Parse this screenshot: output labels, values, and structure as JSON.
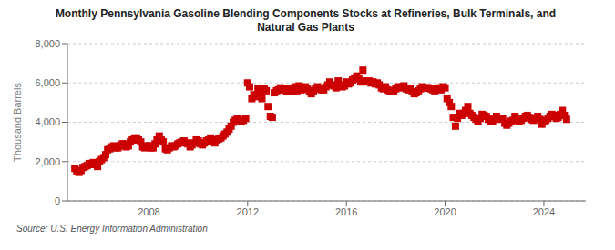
{
  "chart_data": {
    "type": "scatter",
    "title": "Monthly Pennsylvania Gasoline Blending Components Stocks at Refineries, Bulk Terminals, and\nNatural Gas Plants",
    "ylabel": "Thousand Barrels",
    "source": "Source: U.S. Energy Information Administration",
    "color": "#cc0000",
    "marker": "square",
    "grid": true,
    "xlim": [
      2004.7,
      2025.7
    ],
    "xticks": [
      2008,
      2012,
      2016,
      2020,
      2024
    ],
    "ylim": [
      0,
      8000
    ],
    "yticks": [
      0,
      {
        "value": 2000,
        "label": "2,000"
      },
      {
        "value": 4000,
        "label": "4,000"
      },
      {
        "value": 6000,
        "label": "6,000"
      },
      {
        "value": 8000,
        "label": "8,000"
      }
    ],
    "x": [
      2005.0,
      2005.08,
      2005.17,
      2005.25,
      2005.33,
      2005.42,
      2005.5,
      2005.58,
      2005.67,
      2005.75,
      2005.83,
      2005.92,
      2006.0,
      2006.08,
      2006.17,
      2006.25,
      2006.33,
      2006.42,
      2006.5,
      2006.58,
      2006.67,
      2006.75,
      2006.83,
      2006.92,
      2007.0,
      2007.08,
      2007.17,
      2007.25,
      2007.33,
      2007.42,
      2007.5,
      2007.58,
      2007.67,
      2007.75,
      2007.83,
      2007.92,
      2008.0,
      2008.08,
      2008.17,
      2008.25,
      2008.33,
      2008.42,
      2008.5,
      2008.58,
      2008.67,
      2008.75,
      2008.83,
      2008.92,
      2009.0,
      2009.08,
      2009.17,
      2009.25,
      2009.33,
      2009.42,
      2009.5,
      2009.58,
      2009.67,
      2009.75,
      2009.83,
      2009.92,
      2010.0,
      2010.08,
      2010.17,
      2010.25,
      2010.33,
      2010.42,
      2010.5,
      2010.58,
      2010.67,
      2010.75,
      2010.83,
      2010.92,
      2011.0,
      2011.08,
      2011.17,
      2011.25,
      2011.33,
      2011.42,
      2011.5,
      2011.58,
      2011.67,
      2011.75,
      2011.83,
      2011.92,
      2012.0,
      2012.08,
      2012.17,
      2012.25,
      2012.33,
      2012.42,
      2012.5,
      2012.58,
      2012.67,
      2012.75,
      2012.83,
      2012.92,
      2013.0,
      2013.08,
      2013.17,
      2013.25,
      2013.33,
      2013.42,
      2013.5,
      2013.58,
      2013.67,
      2013.75,
      2013.83,
      2013.92,
      2014.0,
      2014.08,
      2014.17,
      2014.25,
      2014.33,
      2014.42,
      2014.5,
      2014.58,
      2014.67,
      2014.75,
      2014.83,
      2014.92,
      2015.0,
      2015.08,
      2015.17,
      2015.25,
      2015.33,
      2015.42,
      2015.5,
      2015.58,
      2015.67,
      2015.75,
      2015.83,
      2015.92,
      2016.0,
      2016.08,
      2016.17,
      2016.25,
      2016.33,
      2016.42,
      2016.5,
      2016.58,
      2016.67,
      2016.75,
      2016.83,
      2016.92,
      2017.0,
      2017.08,
      2017.17,
      2017.25,
      2017.33,
      2017.42,
      2017.5,
      2017.58,
      2017.67,
      2017.75,
      2017.83,
      2017.92,
      2018.0,
      2018.08,
      2018.17,
      2018.25,
      2018.33,
      2018.42,
      2018.5,
      2018.58,
      2018.67,
      2018.75,
      2018.83,
      2018.92,
      2019.0,
      2019.08,
      2019.17,
      2019.25,
      2019.33,
      2019.42,
      2019.5,
      2019.58,
      2019.67,
      2019.75,
      2019.83,
      2019.92,
      2020.0,
      2020.08,
      2020.17,
      2020.25,
      2020.33,
      2020.42,
      2020.5,
      2020.58,
      2020.67,
      2020.75,
      2020.83,
      2020.92,
      2021.0,
      2021.08,
      2021.17,
      2021.25,
      2021.33,
      2021.42,
      2021.5,
      2021.58,
      2021.67,
      2021.75,
      2021.83,
      2021.92,
      2022.0,
      2022.08,
      2022.17,
      2022.25,
      2022.33,
      2022.42,
      2022.5,
      2022.58,
      2022.67,
      2022.75,
      2022.83,
      2022.92,
      2023.0,
      2023.08,
      2023.17,
      2023.25,
      2023.33,
      2023.42,
      2023.5,
      2023.58,
      2023.67,
      2023.75,
      2023.83,
      2023.92,
      2024.0,
      2024.08,
      2024.17,
      2024.25,
      2024.33,
      2024.42,
      2024.5,
      2024.58,
      2024.67,
      2024.75,
      2024.83,
      2024.92
    ],
    "values": [
      1650,
      1500,
      1450,
      1550,
      1700,
      1750,
      1800,
      1900,
      1850,
      1950,
      1850,
      1750,
      2000,
      2100,
      2200,
      2350,
      2600,
      2650,
      2750,
      2800,
      2700,
      2700,
      2800,
      2900,
      2900,
      2750,
      2800,
      3000,
      3100,
      3200,
      3200,
      3100,
      3000,
      2750,
      2700,
      2800,
      2800,
      2700,
      2700,
      2900,
      3100,
      3300,
      3100,
      3000,
      2650,
      2600,
      2700,
      2800,
      2750,
      2800,
      2900,
      2950,
      3000,
      3050,
      2950,
      2900,
      2750,
      2850,
      2950,
      3100,
      3050,
      2900,
      2850,
      2950,
      3050,
      3100,
      3200,
      3050,
      2950,
      3100,
      3150,
      3200,
      3300,
      3400,
      3500,
      3650,
      3800,
      4000,
      4100,
      4200,
      4100,
      4050,
      4100,
      4200,
      6000,
      5800,
      5200,
      5400,
      5300,
      5700,
      5400,
      5200,
      5700,
      5600,
      4800,
      4300,
      4250,
      5500,
      5600,
      5650,
      5750,
      5700,
      5650,
      5550,
      5700,
      5700,
      5550,
      5800,
      5600,
      5850,
      5650,
      5700,
      5800,
      5700,
      5550,
      5450,
      5600,
      5700,
      5800,
      5700,
      5650,
      5650,
      5800,
      5900,
      6050,
      5900,
      5850,
      5750,
      6100,
      5900,
      5800,
      5850,
      6050,
      5950,
      6000,
      6150,
      6250,
      6350,
      6200,
      6050,
      6650,
      6100,
      6050,
      6100,
      6000,
      6050,
      5950,
      6000,
      5900,
      5750,
      5700,
      5800,
      5650,
      5600,
      5550,
      5600,
      5700,
      5800,
      5750,
      5800,
      5850,
      5700,
      5650,
      5700,
      5550,
      5450,
      5500,
      5600,
      5700,
      5800,
      5750,
      5750,
      5750,
      5700,
      5650,
      5600,
      5700,
      5750,
      5650,
      5800,
      5750,
      5200,
      5000,
      4800,
      4250,
      3800,
      4200,
      4450,
      4350,
      4450,
      4600,
      4800,
      4450,
      4350,
      4250,
      4150,
      4050,
      4200,
      4400,
      4350,
      4300,
      4150,
      4050,
      4050,
      4200,
      4300,
      4150,
      4200,
      4200,
      3950,
      3850,
      3950,
      4050,
      4100,
      4300,
      4200,
      4050,
      4100,
      4200,
      4300,
      4350,
      4250,
      4150,
      4100,
      4200,
      4300,
      4150,
      3900,
      4050,
      4100,
      4200,
      4300,
      4400,
      4350,
      4200,
      4250,
      4400,
      4600,
      4350,
      4150
    ]
  }
}
